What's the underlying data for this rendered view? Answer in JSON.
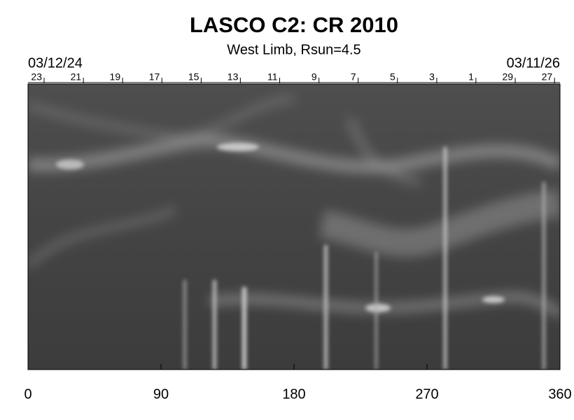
{
  "chart_data": {
    "type": "synoptic_map",
    "title": "LASCO C2: CR 2010",
    "subtitle": "West Limb, Rsun=4.5",
    "start_date": "03/12/24",
    "end_date": "03/11/26",
    "xlim": [
      0,
      360
    ],
    "xticks": [
      0,
      90,
      180,
      270,
      360
    ],
    "top_ticks": [
      {
        "value": 10.9,
        "label": "23"
      },
      {
        "value": 37.5,
        "label": "21"
      },
      {
        "value": 64.0,
        "label": "19"
      },
      {
        "value": 90.6,
        "label": "17"
      },
      {
        "value": 117.2,
        "label": "15"
      },
      {
        "value": 143.7,
        "label": "13"
      },
      {
        "value": 170.3,
        "label": "11"
      },
      {
        "value": 196.9,
        "label": "9"
      },
      {
        "value": 223.4,
        "label": "7"
      },
      {
        "value": 250.0,
        "label": "5"
      },
      {
        "value": 276.6,
        "label": "3"
      },
      {
        "value": 303.1,
        "label": "1"
      },
      {
        "value": 329.7,
        "label": "29"
      },
      {
        "value": 356.3,
        "label": "27"
      }
    ]
  }
}
